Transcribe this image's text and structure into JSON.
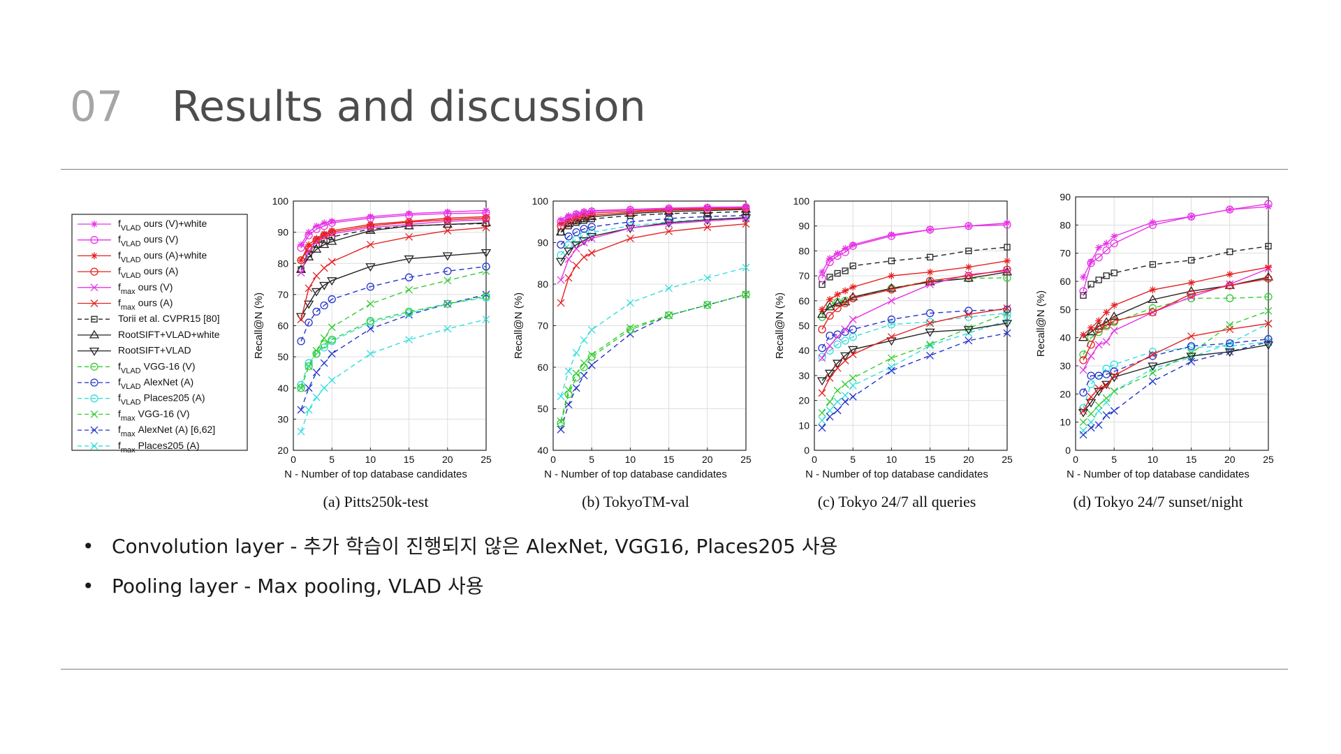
{
  "slide": {
    "number": "07",
    "title": "Results and discussion"
  },
  "bullets": [
    "Convolution layer - 추가 학습이 진행되지 않은 AlexNet, VGG16, Places205 사용",
    "Pooling layer - Max pooling, VLAD 사용"
  ],
  "bullet_glyph": "•",
  "legend": [
    {
      "base": "f",
      "sub": "VLAD",
      "text": "ours (V)+white",
      "color": "#e633e6",
      "marker": "asterisk",
      "dash": "solid"
    },
    {
      "base": "f",
      "sub": "VLAD",
      "text": "ours (V)",
      "color": "#e633e6",
      "marker": "circle",
      "dash": "solid"
    },
    {
      "base": "f",
      "sub": "VLAD",
      "text": "ours (A)+white",
      "color": "#e62020",
      "marker": "asterisk",
      "dash": "solid"
    },
    {
      "base": "f",
      "sub": "VLAD",
      "text": "ours (A)",
      "color": "#e62020",
      "marker": "circle",
      "dash": "solid"
    },
    {
      "base": "f",
      "sub": "max",
      "text": "ours (V)",
      "color": "#e633e6",
      "marker": "x",
      "dash": "solid"
    },
    {
      "base": "f",
      "sub": "max",
      "text": "ours (A)",
      "color": "#e62020",
      "marker": "x",
      "dash": "solid"
    },
    {
      "base": "",
      "sub": "",
      "text": "Torii et al. CVPR15 [80]",
      "color": "#222222",
      "marker": "square",
      "dash": "dashed"
    },
    {
      "base": "",
      "sub": "",
      "text": "RootSIFT+VLAD+white",
      "color": "#222222",
      "marker": "triangle-up",
      "dash": "solid"
    },
    {
      "base": "",
      "sub": "",
      "text": "RootSIFT+VLAD",
      "color": "#222222",
      "marker": "triangle-down",
      "dash": "solid"
    },
    {
      "base": "f",
      "sub": "VLAD",
      "text": "VGG-16 (V)",
      "color": "#33cc33",
      "marker": "circle",
      "dash": "dashed"
    },
    {
      "base": "f",
      "sub": "VLAD",
      "text": "AlexNet (A)",
      "color": "#2233cc",
      "marker": "circle",
      "dash": "dashed"
    },
    {
      "base": "f",
      "sub": "VLAD",
      "text": "Places205 (A)",
      "color": "#33dddd",
      "marker": "circle",
      "dash": "dashed"
    },
    {
      "base": "f",
      "sub": "max",
      "text": "VGG-16 (V)",
      "color": "#33cc33",
      "marker": "x",
      "dash": "dashed"
    },
    {
      "base": "f",
      "sub": "max",
      "text": "AlexNet (A) [6,62]",
      "color": "#2233cc",
      "marker": "x",
      "dash": "dashed"
    },
    {
      "base": "f",
      "sub": "max",
      "text": "Places205 (A)",
      "color": "#33dddd",
      "marker": "x",
      "dash": "dashed"
    }
  ],
  "chart_data": [
    {
      "type": "line",
      "caption": "(a) Pitts250k-test",
      "xlabel": "N - Number of top database candidates",
      "ylabel": "Recall@N (%)",
      "xlim": [
        0,
        25
      ],
      "ylim": [
        20,
        100
      ],
      "xticks": [
        0,
        5,
        10,
        15,
        20,
        25
      ],
      "yticks": [
        20,
        30,
        40,
        50,
        60,
        70,
        80,
        90,
        100
      ],
      "grid": true,
      "x": [
        1,
        2,
        3,
        4,
        5,
        10,
        15,
        20,
        25
      ],
      "series": [
        {
          "legend_index": 0,
          "values": [
            86,
            90,
            92,
            93,
            93.5,
            95,
            96,
            96.5,
            97
          ]
        },
        {
          "legend_index": 1,
          "values": [
            85,
            89,
            91,
            92,
            93,
            94.5,
            95.5,
            96,
            96.2
          ]
        },
        {
          "legend_index": 2,
          "values": [
            81,
            86,
            88,
            89.5,
            90.5,
            92.5,
            93.5,
            94.5,
            95
          ]
        },
        {
          "legend_index": 3,
          "values": [
            81,
            85,
            87.5,
            89,
            90,
            92,
            93.2,
            94,
            94.5
          ]
        },
        {
          "legend_index": 4,
          "values": [
            77,
            84,
            87,
            88.5,
            89.5,
            91.5,
            92.5,
            93.5,
            94
          ]
        },
        {
          "legend_index": 5,
          "values": [
            62,
            72,
            76,
            78.5,
            80.5,
            86,
            88.5,
            90.5,
            91.5
          ]
        },
        {
          "legend_index": 6,
          "values": [
            78,
            83,
            86,
            87.5,
            88.5,
            91,
            92,
            92.5,
            92.8
          ]
        },
        {
          "legend_index": 7,
          "values": [
            78,
            82,
            84.5,
            86,
            87,
            90.5,
            92,
            92.5,
            93
          ]
        },
        {
          "legend_index": 8,
          "values": [
            63,
            67,
            71,
            73,
            74.5,
            79,
            81.5,
            82.5,
            83.5
          ]
        },
        {
          "legend_index": 9,
          "values": [
            40,
            47,
            51,
            54,
            55.5,
            61.5,
            64.5,
            67,
            69.5
          ]
        },
        {
          "legend_index": 10,
          "values": [
            55,
            61,
            64.5,
            66.5,
            68.5,
            72.5,
            75.5,
            77.5,
            79
          ]
        },
        {
          "legend_index": 11,
          "values": [
            41,
            48,
            51,
            53,
            55,
            61,
            64,
            67,
            69
          ]
        },
        {
          "legend_index": 12,
          "values": [
            40,
            47,
            52,
            56,
            59.5,
            67,
            71.5,
            74.5,
            77.5
          ]
        },
        {
          "legend_index": 13,
          "values": [
            33,
            40,
            45,
            48,
            51,
            59,
            63.5,
            67,
            70
          ]
        },
        {
          "legend_index": 14,
          "values": [
            26,
            33,
            37,
            40,
            42.5,
            51,
            55.5,
            59,
            62
          ]
        }
      ]
    },
    {
      "type": "line",
      "caption": "(b) TokyoTM-val",
      "xlabel": "N - Number of top database candidates",
      "ylabel": "Recall@N (%)",
      "xlim": [
        0,
        25
      ],
      "ylim": [
        40,
        100
      ],
      "xticks": [
        0,
        5,
        10,
        15,
        20,
        25
      ],
      "yticks": [
        40,
        50,
        60,
        70,
        80,
        90,
        100
      ],
      "grid": true,
      "x": [
        1,
        2,
        3,
        4,
        5,
        10,
        15,
        20,
        25
      ],
      "series": [
        {
          "legend_index": 0,
          "values": [
            95.5,
            96.5,
            97,
            97.5,
            97.7,
            98,
            98.3,
            98.5,
            98.6
          ]
        },
        {
          "legend_index": 1,
          "values": [
            95,
            96,
            96.8,
            97.2,
            97.5,
            97.9,
            98.2,
            98.4,
            98.5
          ]
        },
        {
          "legend_index": 2,
          "values": [
            94.5,
            95.5,
            96.2,
            96.8,
            97.1,
            97.6,
            98,
            98.2,
            98.3
          ]
        },
        {
          "legend_index": 3,
          "values": [
            94,
            95,
            95.8,
            96.3,
            96.6,
            97.3,
            97.8,
            98,
            98.2
          ]
        },
        {
          "legend_index": 4,
          "values": [
            81,
            86,
            88.5,
            90,
            91,
            93.5,
            94.5,
            95.2,
            95.8
          ]
        },
        {
          "legend_index": 5,
          "values": [
            75.5,
            81.5,
            84.5,
            86.5,
            87.5,
            91,
            92.7,
            93.7,
            94.5
          ]
        },
        {
          "legend_index": 6,
          "values": [
            92.5,
            94,
            94.8,
            95.3,
            95.7,
            96.5,
            97,
            97.2,
            97.5
          ]
        },
        {
          "legend_index": 7,
          "values": [
            92.5,
            94.5,
            95.2,
            95.7,
            96.2,
            97,
            97.5,
            97.7,
            98
          ]
        },
        {
          "legend_index": 8,
          "values": [
            85.5,
            88,
            89.5,
            90.5,
            91.5,
            93.5,
            94.8,
            95.5,
            96
          ]
        },
        {
          "legend_index": 9,
          "values": [
            46.5,
            53.5,
            57.5,
            60,
            62.5,
            69,
            72.5,
            75,
            77.5
          ]
        },
        {
          "legend_index": 10,
          "values": [
            89.5,
            91.5,
            92.5,
            93.3,
            93.8,
            95,
            95.8,
            96.3,
            96.5
          ]
        },
        {
          "legend_index": 11,
          "values": [
            87,
            89.5,
            90.8,
            91.8,
            92.5,
            94,
            95,
            95.6,
            96
          ]
        },
        {
          "legend_index": 12,
          "values": [
            47,
            54.5,
            58.5,
            61,
            63,
            69.5,
            72.5,
            75,
            77.5
          ]
        },
        {
          "legend_index": 13,
          "values": [
            45,
            51,
            55,
            58,
            60.5,
            68,
            72.5,
            75,
            77.5
          ]
        },
        {
          "legend_index": 14,
          "values": [
            53,
            59,
            63.5,
            66.5,
            69,
            75.5,
            79,
            81.5,
            84
          ]
        }
      ]
    },
    {
      "type": "line",
      "caption": "(c) Tokyo 24/7 all queries",
      "xlabel": "N - Number of top database candidates",
      "ylabel": "Recall@N (%)",
      "xlim": [
        0,
        25
      ],
      "ylim": [
        0,
        100
      ],
      "xticks": [
        0,
        5,
        10,
        15,
        20,
        25
      ],
      "yticks": [
        0,
        10,
        20,
        30,
        40,
        50,
        60,
        70,
        80,
        90,
        100
      ],
      "grid": true,
      "x": [
        1,
        2,
        3,
        4,
        5,
        10,
        15,
        20,
        25
      ],
      "series": [
        {
          "legend_index": 0,
          "values": [
            71.5,
            77,
            79,
            81,
            82.5,
            86.5,
            88.5,
            90,
            91.2
          ]
        },
        {
          "legend_index": 1,
          "values": [
            69,
            75.5,
            78,
            79.5,
            82,
            86,
            88.5,
            90,
            90.5
          ]
        },
        {
          "legend_index": 2,
          "values": [
            56.5,
            60.5,
            62.5,
            64,
            65.5,
            70,
            71.5,
            73.5,
            76
          ]
        },
        {
          "legend_index": 3,
          "values": [
            48.5,
            54,
            57,
            59,
            61,
            64.5,
            68,
            70,
            72.5
          ]
        },
        {
          "legend_index": 4,
          "values": [
            37,
            42,
            45.5,
            48.5,
            52.5,
            60,
            66.5,
            70.5,
            72
          ]
        },
        {
          "legend_index": 5,
          "values": [
            23,
            29,
            33,
            36,
            38.5,
            45.5,
            51,
            54.5,
            57
          ]
        },
        {
          "legend_index": 6,
          "values": [
            66.5,
            69.5,
            71,
            72,
            74,
            76,
            77.5,
            80,
            81.5
          ]
        },
        {
          "legend_index": 7,
          "values": [
            54.5,
            57.5,
            59,
            59.5,
            61.5,
            65,
            67.5,
            69,
            71.5
          ]
        },
        {
          "legend_index": 8,
          "values": [
            28,
            31,
            35,
            38,
            40.5,
            44,
            47.5,
            48.5,
            51
          ]
        },
        {
          "legend_index": 9,
          "values": [
            53.5,
            58.5,
            59.5,
            60,
            61,
            65,
            68,
            69,
            69.2
          ]
        },
        {
          "legend_index": 10,
          "values": [
            41,
            46,
            46.5,
            47.5,
            48.5,
            52.5,
            55,
            56,
            56.5
          ]
        },
        {
          "legend_index": 11,
          "values": [
            37.5,
            40,
            42.5,
            44,
            45.5,
            50.5,
            51.5,
            53.5,
            55
          ]
        },
        {
          "legend_index": 12,
          "values": [
            15,
            19.5,
            24,
            26.5,
            29,
            37,
            42.5,
            49,
            55
          ]
        },
        {
          "legend_index": 13,
          "values": [
            9,
            13.5,
            16,
            19.5,
            21.5,
            32,
            38,
            44,
            47
          ]
        },
        {
          "legend_index": 14,
          "values": [
            12,
            16,
            19.5,
            22,
            26,
            33.5,
            42,
            47,
            52
          ]
        }
      ]
    },
    {
      "type": "line",
      "caption": "(d) Tokyo 24/7 sunset/night",
      "xlabel": "N - Number of top database candidates",
      "ylabel": "Recall@N (%)",
      "xlim": [
        0,
        25
      ],
      "ylim": [
        0,
        90
      ],
      "xticks": [
        0,
        5,
        10,
        15,
        20,
        25
      ],
      "yticks": [
        0,
        10,
        20,
        30,
        40,
        50,
        60,
        70,
        80,
        90
      ],
      "grid": true,
      "x": [
        1,
        2,
        3,
        4,
        5,
        10,
        15,
        20,
        25
      ],
      "series": [
        {
          "legend_index": 0,
          "values": [
            61.5,
            67,
            72,
            73.5,
            76,
            81,
            83,
            85.5,
            86.5
          ]
        },
        {
          "legend_index": 1,
          "values": [
            56.5,
            66.5,
            68.5,
            71,
            73.5,
            80,
            83,
            85.5,
            87.5
          ]
        },
        {
          "legend_index": 2,
          "values": [
            41,
            43.5,
            46,
            49,
            51.5,
            57,
            59.5,
            62.5,
            65
          ]
        },
        {
          "legend_index": 3,
          "values": [
            32,
            37.5,
            43,
            44.5,
            46,
            49,
            55.5,
            58.5,
            61
          ]
        },
        {
          "legend_index": 4,
          "values": [
            28.5,
            33.5,
            37.5,
            38.5,
            42.5,
            49,
            54.5,
            59,
            64.5
          ]
        },
        {
          "legend_index": 5,
          "values": [
            14,
            19,
            22,
            23,
            26.5,
            34,
            40.5,
            43,
            45
          ]
        },
        {
          "legend_index": 6,
          "values": [
            55,
            59,
            60.5,
            62,
            63,
            66,
            67.5,
            70.5,
            72.5
          ]
        },
        {
          "legend_index": 7,
          "values": [
            40,
            42,
            44,
            45.5,
            47.5,
            53.5,
            56.5,
            58.5,
            61.5
          ]
        },
        {
          "legend_index": 8,
          "values": [
            13.5,
            17,
            21,
            23.5,
            26,
            30,
            33.5,
            35,
            37.5
          ]
        },
        {
          "legend_index": 9,
          "values": [
            34,
            40,
            42,
            44,
            45.5,
            50.5,
            54,
            54,
            54.5
          ]
        },
        {
          "legend_index": 10,
          "values": [
            20.5,
            26.5,
            26.5,
            27,
            28,
            33.5,
            37,
            38,
            39.5
          ]
        },
        {
          "legend_index": 11,
          "values": [
            15,
            23.5,
            26.5,
            29,
            30.5,
            35,
            36.5,
            37,
            38.5
          ]
        },
        {
          "legend_index": 12,
          "values": [
            10,
            13,
            16,
            18.5,
            21,
            27.5,
            34.5,
            44.5,
            49.5
          ]
        },
        {
          "legend_index": 13,
          "values": [
            5.5,
            8,
            9,
            12.5,
            14,
            24.5,
            31.5,
            35,
            38.5
          ]
        },
        {
          "legend_index": 14,
          "values": [
            7,
            10,
            14,
            17,
            21,
            29,
            33,
            38,
            45
          ]
        }
      ]
    }
  ]
}
